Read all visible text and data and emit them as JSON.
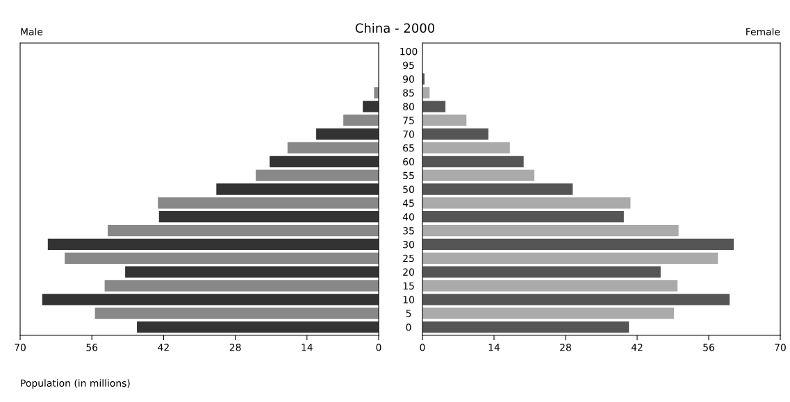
{
  "chart_data": [
    {
      "type": "bar",
      "orientation": "horizontal",
      "title": "China - 2000",
      "xlabel": "Population (in millions)",
      "categories": [
        "100",
        "95",
        "90",
        "85",
        "80",
        "75",
        "70",
        "65",
        "60",
        "55",
        "50",
        "45",
        "40",
        "35",
        "30",
        "25",
        "20",
        "15",
        "10",
        "5",
        "0"
      ],
      "series": [
        {
          "name": "Male",
          "values": [
            0,
            null,
            null,
            0.9,
            3.1,
            6.9,
            12.2,
            17.8,
            21.3,
            24.0,
            31.7,
            43.1,
            42.9,
            52.9,
            64.6,
            61.3,
            49.5,
            53.5,
            65.7,
            55.4,
            47.2
          ],
          "colors": [
            "#333333",
            "#888888",
            "#333333",
            "#888888",
            "#333333",
            "#888888",
            "#333333",
            "#888888",
            "#333333",
            "#888888",
            "#333333",
            "#888888",
            "#333333",
            "#888888",
            "#333333",
            "#888888",
            "#333333",
            "#888888",
            "#333333",
            "#888888",
            "#333333"
          ]
        }
      ],
      "xlim": [
        70,
        0
      ],
      "xticks": [
        70,
        56,
        42,
        28,
        14,
        0
      ],
      "grid": false,
      "legend": false
    },
    {
      "type": "bar",
      "orientation": "horizontal",
      "categories": [
        "100",
        "95",
        "90",
        "85",
        "80",
        "75",
        "70",
        "65",
        "60",
        "55",
        "50",
        "45",
        "40",
        "35",
        "30",
        "25",
        "20",
        "15",
        "10",
        "5",
        "0"
      ],
      "series": [
        {
          "name": "Female",
          "values": [
            0,
            null,
            0.4,
            1.4,
            4.5,
            8.6,
            12.9,
            17.1,
            19.8,
            21.9,
            29.4,
            40.7,
            39.4,
            50.1,
            60.9,
            57.8,
            46.6,
            49.9,
            60.1,
            49.2,
            40.4
          ],
          "colors": [
            "#555555",
            "#aaaaaa",
            "#555555",
            "#aaaaaa",
            "#555555",
            "#aaaaaa",
            "#555555",
            "#aaaaaa",
            "#555555",
            "#aaaaaa",
            "#555555",
            "#aaaaaa",
            "#555555",
            "#aaaaaa",
            "#555555",
            "#aaaaaa",
            "#555555",
            "#aaaaaa",
            "#555555",
            "#aaaaaa",
            "#555555"
          ]
        }
      ],
      "xlim": [
        0,
        70
      ],
      "xticks": [
        0,
        14,
        28,
        42,
        56,
        70
      ],
      "tick_labels": "x",
      "grid": false,
      "legend": false
    }
  ]
}
